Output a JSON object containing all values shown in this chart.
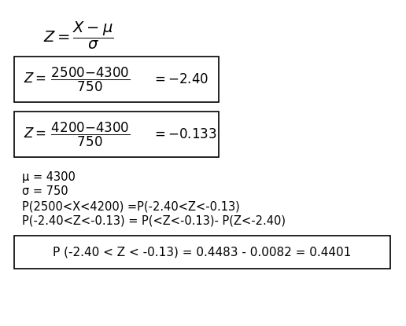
{
  "bg_color": "#ffffff",
  "text_color": "#000000",
  "figsize": [
    5.16,
    4.15
  ],
  "dpi": 100,
  "formula_main": "$Z = \\dfrac{X - \\mu}{\\sigma}$",
  "box1_left": "$Z{=}\\,\\dfrac{2500{-}4300}{750}$",
  "box1_right": "$={-}2.40$",
  "box2_left": "$Z{=}\\,\\dfrac{4200{-}4300}{750}$",
  "box2_right": "$={-}0.133$",
  "line1": "μ = 4300",
  "line2": "σ = 750",
  "line3": "P(2500<X<4200) =P(-2.40<Z<-0.13)",
  "line4": "P(-2.40<Z<-0.13) = P(<Z<-0.13)- P(Z<-2.40)",
  "box3_text": "P (-2.40 < Z < -0.13) = 0.4483 - 0.0082 = 0.4401"
}
